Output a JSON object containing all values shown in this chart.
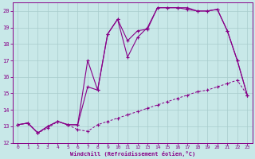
{
  "xlabel": "Windchill (Refroidissement éolien,°C)",
  "bg_color": "#c8e8e8",
  "line_color": "#880088",
  "grid_color": "#a8cccc",
  "xlim": [
    -0.5,
    23.5
  ],
  "ylim": [
    12,
    20.5
  ],
  "yticks": [
    12,
    13,
    14,
    15,
    16,
    17,
    18,
    19,
    20
  ],
  "xticks": [
    0,
    1,
    2,
    3,
    4,
    5,
    6,
    7,
    8,
    9,
    10,
    11,
    12,
    13,
    14,
    15,
    16,
    17,
    18,
    19,
    20,
    21,
    22,
    23
  ],
  "line1_x": [
    0,
    1,
    2,
    3,
    4,
    5,
    6,
    7,
    8,
    9,
    10,
    11,
    12,
    13,
    14,
    15,
    16,
    17,
    18,
    19,
    20,
    21,
    22,
    23
  ],
  "line1_y": [
    13.1,
    13.2,
    12.6,
    12.9,
    13.3,
    13.1,
    12.8,
    12.7,
    13.1,
    13.3,
    13.5,
    13.7,
    13.9,
    14.1,
    14.3,
    14.5,
    14.7,
    14.9,
    15.1,
    15.2,
    15.4,
    15.6,
    15.8,
    14.9
  ],
  "line2_x": [
    0,
    1,
    2,
    3,
    4,
    5,
    6,
    7,
    8,
    9,
    10,
    11,
    12,
    13,
    14,
    15,
    16,
    17,
    18,
    19,
    20,
    21,
    22,
    23
  ],
  "line2_y": [
    13.1,
    13.2,
    12.6,
    13.0,
    13.3,
    13.1,
    13.1,
    17.0,
    15.2,
    18.6,
    19.5,
    18.2,
    18.8,
    18.9,
    20.2,
    20.2,
    20.2,
    20.2,
    20.0,
    20.0,
    20.1,
    18.8,
    17.0,
    14.9
  ],
  "line3_x": [
    0,
    1,
    2,
    3,
    4,
    5,
    6,
    7,
    8,
    9,
    10,
    11,
    12,
    13,
    14,
    15,
    16,
    17,
    18,
    19,
    20,
    21,
    22,
    23
  ],
  "line3_y": [
    13.1,
    13.2,
    12.6,
    13.0,
    13.3,
    13.1,
    13.1,
    15.4,
    15.2,
    18.6,
    19.5,
    17.2,
    18.4,
    19.0,
    20.2,
    20.2,
    20.2,
    20.1,
    20.0,
    20.0,
    20.1,
    18.8,
    17.0,
    14.9
  ]
}
